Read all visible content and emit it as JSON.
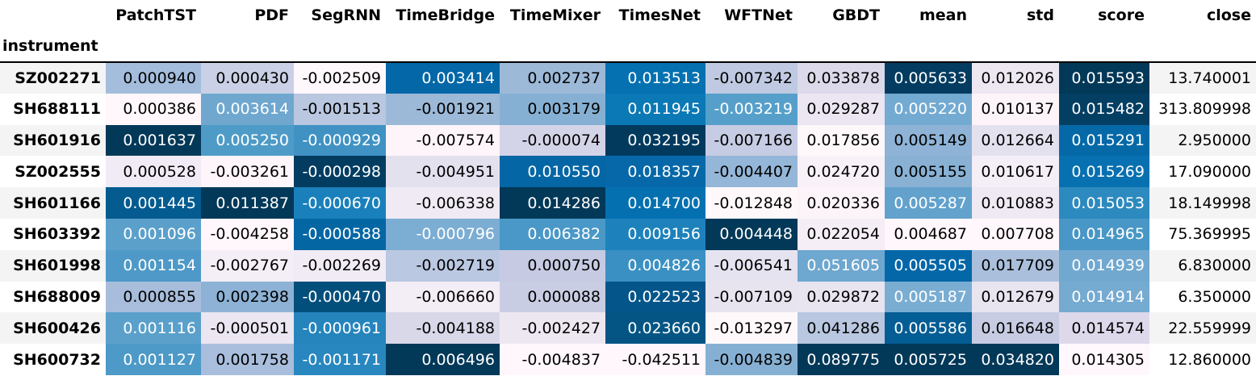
{
  "table": {
    "index_name": "instrument",
    "columns": [
      "PatchTST",
      "PDF",
      "SegRNN",
      "TimeBridge",
      "TimeMixer",
      "TimesNet",
      "WFTNet",
      "GBDT",
      "mean",
      "std",
      "score",
      "close"
    ],
    "rows": [
      {
        "instrument": "SZ002271",
        "values": [
          "0.000940",
          "0.000430",
          "-0.002509",
          "0.003414",
          "0.002737",
          "0.013513",
          "-0.007342",
          "0.033878",
          "0.005633",
          "0.012026",
          "0.015593",
          "13.740001"
        ],
        "bg": [
          "#a4bddc",
          "#cad1e6",
          "#fef7fb",
          "#0467a7",
          "#9cb9d8",
          "#0571b0",
          "#bfcae2",
          "#dbd9ea",
          "#033c60",
          "#ede7f2",
          "#023858",
          "#f4f4f4"
        ]
      },
      {
        "instrument": "SH688111",
        "values": [
          "0.000386",
          "0.003614",
          "-0.001513",
          "-0.001921",
          "0.003179",
          "0.011945",
          "-0.003219",
          "0.029287",
          "0.005220",
          "0.010137",
          "0.015482",
          "313.809998"
        ],
        "bg": [
          "#fff7fb",
          "#6fa7cf",
          "#b9c7e0",
          "#9cb9d8",
          "#86b0d3",
          "#0b79b5",
          "#569fca",
          "#ebe6f2",
          "#73aad1",
          "#fcf4f9",
          "#033f63",
          "#ffffff"
        ]
      },
      {
        "instrument": "SH601916",
        "values": [
          "0.001637",
          "0.005250",
          "-0.000929",
          "-0.007574",
          "-0.000074",
          "0.032195",
          "-0.007166",
          "0.017856",
          "0.005149",
          "0.012664",
          "0.015291",
          "2.950000"
        ],
        "bg": [
          "#023858",
          "#4e9bc7",
          "#4092c3",
          "#fdf5fa",
          "#d4d4e8",
          "#023a5e",
          "#c6cce3",
          "#fef8fb",
          "#8eb3d6",
          "#e4e1ef",
          "#0569a8",
          "#f4f4f4"
        ]
      },
      {
        "instrument": "SZ002555",
        "values": [
          "0.000528",
          "-0.003261",
          "-0.000298",
          "-0.004951",
          "0.010550",
          "0.018357",
          "-0.004407",
          "0.024720",
          "0.005155",
          "0.010617",
          "0.015269",
          "17.090000"
        ],
        "bg": [
          "#f1ebf5",
          "#fdf5fa",
          "#033c61",
          "#e4e1ef",
          "#0466a5",
          "#0668a8",
          "#94b6d8",
          "#f8f1f8",
          "#88b1d4",
          "#f4eef6",
          "#0770b0",
          "#ffffff"
        ]
      },
      {
        "instrument": "SH601166",
        "values": [
          "0.001445",
          "0.011387",
          "-0.000670",
          "-0.006338",
          "0.014286",
          "0.014700",
          "-0.012848",
          "0.020336",
          "0.005287",
          "0.010883",
          "0.015053",
          "18.149998"
        ],
        "bg": [
          "#045b90",
          "#023858",
          "#1a80bb",
          "#f0eaf4",
          "#023858",
          "#0570b0",
          "#fef8fb",
          "#fcf4f9",
          "#62a2cc",
          "#efe9f4",
          "#2d8abf",
          "#f4f4f4"
        ]
      },
      {
        "instrument": "SH603392",
        "values": [
          "0.001096",
          "-0.004258",
          "-0.000588",
          "-0.000796",
          "0.006382",
          "0.009156",
          "0.004448",
          "0.022054",
          "0.004687",
          "0.007708",
          "0.014965",
          "75.369995"
        ],
        "bg": [
          "#5ba0cb",
          "#fff7fb",
          "#0566a4",
          "#7cadd3",
          "#4a98c7",
          "#1d82bb",
          "#023858",
          "#f5eef6",
          "#fff7fb",
          "#fff7fb",
          "#4897c6",
          "#ffffff"
        ]
      },
      {
        "instrument": "SH601998",
        "values": [
          "0.001154",
          "-0.002767",
          "-0.002269",
          "-0.002719",
          "0.000750",
          "0.004826",
          "-0.006541",
          "0.051605",
          "0.005505",
          "0.017709",
          "0.014939",
          "6.830000"
        ],
        "bg": [
          "#4e99c7",
          "#f4eef6",
          "#f0ebf5",
          "#bac8e1",
          "#c6cbe3",
          "#3a90c2",
          "#e6e3f0",
          "#6ea7cf",
          "#0467a7",
          "#aabfdc",
          "#70a8d0",
          "#f4f4f4"
        ]
      },
      {
        "instrument": "SH688009",
        "values": [
          "0.000855",
          "0.002398",
          "-0.000470",
          "-0.006660",
          "0.000088",
          "0.022523",
          "-0.007109",
          "0.029872",
          "0.005187",
          "0.012679",
          "0.014914",
          "6.350000"
        ],
        "bg": [
          "#a7bddb",
          "#8db2d6",
          "#034f7c",
          "#f3edf5",
          "#c9cde4",
          "#04558a",
          "#e7e4f0",
          "#e8e4f0",
          "#7aadd2",
          "#e8e4f0",
          "#75aad1",
          "#ffffff"
        ]
      },
      {
        "instrument": "SH600426",
        "values": [
          "0.001116",
          "-0.000501",
          "-0.000961",
          "-0.004188",
          "-0.002427",
          "0.023660",
          "-0.013297",
          "0.041286",
          "0.005586",
          "0.016648",
          "0.014574",
          "22.559999"
        ],
        "bg": [
          "#5aa0cb",
          "#ebe6f2",
          "#2684bd",
          "#d9d8e9",
          "#ede7f2",
          "#045584",
          "#fef8fb",
          "#b9c7e0",
          "#045d94",
          "#c7cce3",
          "#ddd9eb",
          "#f4f4f4"
        ]
      },
      {
        "instrument": "SH600732",
        "values": [
          "0.001127",
          "0.001758",
          "-0.001171",
          "0.006496",
          "-0.004837",
          "-0.042511",
          "-0.004839",
          "0.089775",
          "0.005725",
          "0.034820",
          "0.014305",
          "12.860000"
        ],
        "bg": [
          "#4d99c7",
          "#a8bedc",
          "#2987bf",
          "#023858",
          "#fff7fb",
          "#fff7fb",
          "#86b0d3",
          "#023858",
          "#023858",
          "#023858",
          "#fff7fb",
          "#ffffff"
        ]
      }
    ]
  }
}
